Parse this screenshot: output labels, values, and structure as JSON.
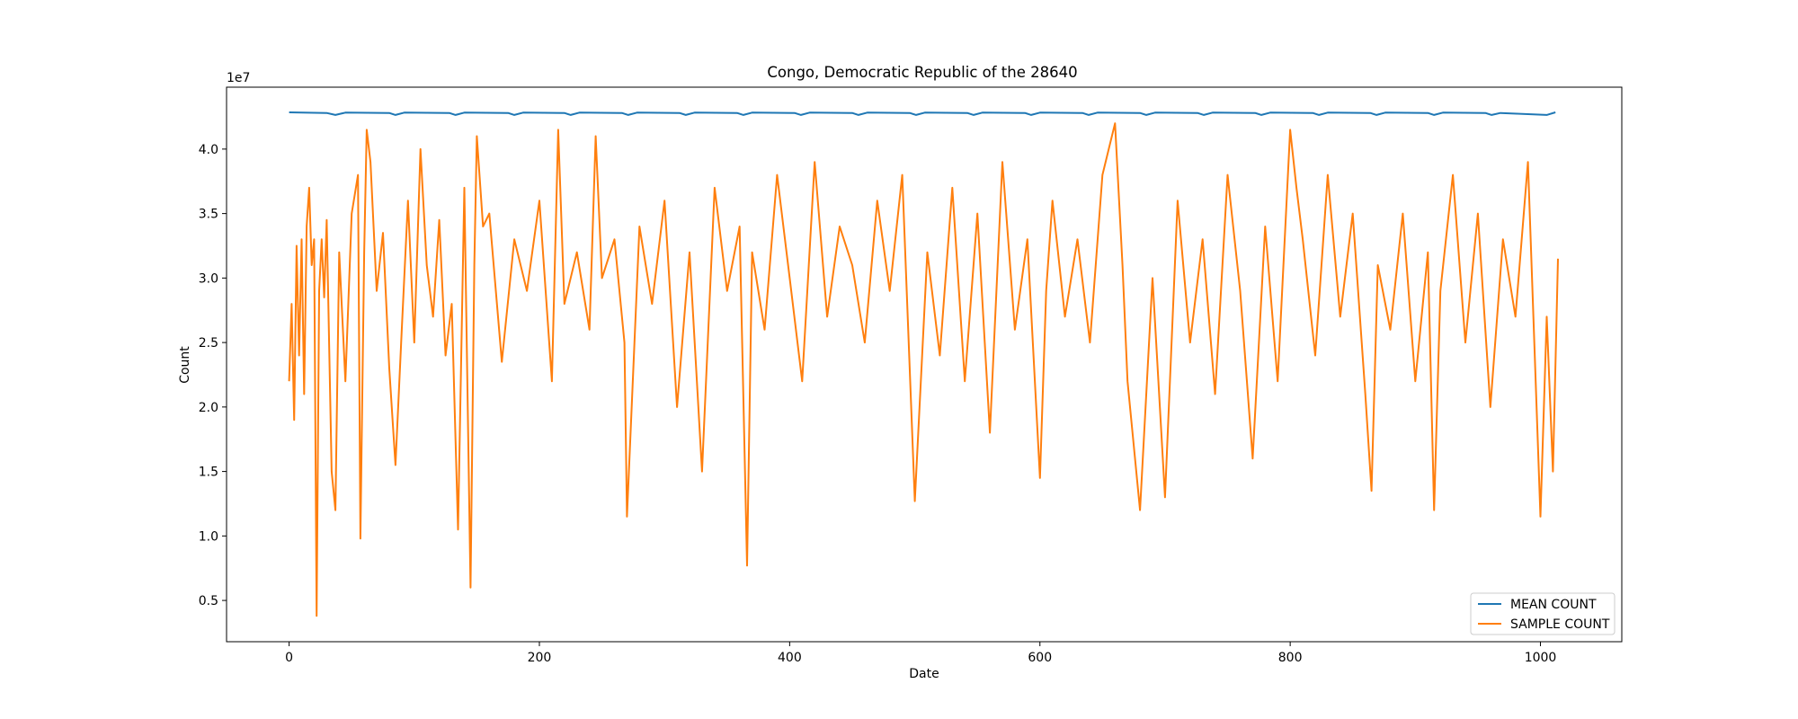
{
  "chart_data": {
    "type": "line",
    "title": "Congo, Democratic Republic of the 28640",
    "xlabel": "Date",
    "ylabel": "Count",
    "y_offset_label": "1e7",
    "y_scale": 10000000,
    "xlim": [
      -50,
      1065
    ],
    "ylim": [
      0.18,
      4.48
    ],
    "x_ticks": [
      0,
      200,
      400,
      600,
      800,
      1000
    ],
    "x_tick_labels": [
      "0",
      "200",
      "400",
      "600",
      "800",
      "1000"
    ],
    "y_ticks": [
      0.5,
      1.0,
      1.5,
      2.0,
      2.5,
      3.0,
      3.5,
      4.0
    ],
    "y_tick_labels": [
      "0.5",
      "1.0",
      "1.5",
      "2.0",
      "2.5",
      "3.0",
      "3.5",
      "4.0"
    ],
    "grid": false,
    "legend_position": "lower-right",
    "n_points": 1014,
    "series": [
      {
        "name": "MEAN COUNT",
        "color": "#1f77b4",
        "description": "nearly constant around 4.28e7 with periodic small dips (~every 45-50 days)",
        "x": [
          0,
          30,
          37,
          45,
          80,
          85,
          92,
          128,
          133,
          140,
          175,
          180,
          187,
          220,
          225,
          232,
          266,
          271,
          278,
          312,
          317,
          324,
          358,
          363,
          370,
          404,
          409,
          416,
          450,
          455,
          462,
          496,
          501,
          508,
          542,
          547,
          554,
          588,
          593,
          600,
          634,
          639,
          646,
          680,
          685,
          692,
          726,
          731,
          738,
          772,
          777,
          784,
          818,
          823,
          830,
          864,
          869,
          876,
          910,
          915,
          922,
          956,
          961,
          968,
          1005,
          1012
        ],
        "values": [
          4.285,
          4.28,
          4.265,
          4.283,
          4.28,
          4.265,
          4.283,
          4.28,
          4.265,
          4.283,
          4.28,
          4.265,
          4.283,
          4.28,
          4.265,
          4.283,
          4.28,
          4.265,
          4.283,
          4.28,
          4.265,
          4.283,
          4.28,
          4.265,
          4.283,
          4.28,
          4.265,
          4.283,
          4.28,
          4.265,
          4.283,
          4.28,
          4.265,
          4.283,
          4.28,
          4.265,
          4.283,
          4.28,
          4.265,
          4.283,
          4.28,
          4.265,
          4.283,
          4.28,
          4.265,
          4.283,
          4.28,
          4.265,
          4.283,
          4.28,
          4.265,
          4.283,
          4.28,
          4.265,
          4.283,
          4.28,
          4.265,
          4.283,
          4.28,
          4.265,
          4.283,
          4.28,
          4.265,
          4.28,
          4.265,
          4.285
        ]
      },
      {
        "name": "SAMPLE COUNT",
        "color": "#ff7f0e",
        "description": "noisy daily counts mostly between 2.0e7 and 4.0e7; key extremes listed below, remaining points approximate",
        "x": [
          0,
          2,
          4,
          6,
          8,
          10,
          12,
          14,
          16,
          18,
          20,
          22,
          24,
          26,
          28,
          30,
          34,
          37,
          40,
          45,
          50,
          55,
          57,
          60,
          62,
          65,
          70,
          75,
          80,
          85,
          90,
          95,
          100,
          105,
          110,
          115,
          120,
          125,
          130,
          135,
          140,
          145,
          148,
          150,
          155,
          160,
          170,
          180,
          190,
          200,
          210,
          215,
          220,
          230,
          240,
          245,
          250,
          260,
          268,
          270,
          280,
          290,
          300,
          310,
          320,
          330,
          340,
          350,
          360,
          366,
          370,
          380,
          390,
          400,
          410,
          420,
          430,
          440,
          450,
          460,
          470,
          480,
          490,
          500,
          510,
          520,
          530,
          540,
          550,
          560,
          570,
          580,
          590,
          600,
          605,
          610,
          620,
          630,
          640,
          650,
          660,
          666,
          670,
          680,
          690,
          700,
          710,
          720,
          730,
          740,
          750,
          760,
          770,
          780,
          790,
          800,
          805,
          810,
          820,
          830,
          840,
          850,
          860,
          865,
          870,
          880,
          890,
          900,
          910,
          915,
          920,
          930,
          940,
          950,
          960,
          970,
          980,
          990,
          1000,
          1005,
          1010,
          1014
        ],
        "values": [
          2.2,
          2.8,
          1.9,
          3.25,
          2.4,
          3.3,
          2.1,
          3.4,
          3.7,
          3.1,
          3.3,
          0.38,
          2.9,
          3.3,
          2.85,
          3.45,
          1.5,
          1.2,
          3.2,
          2.2,
          3.5,
          3.8,
          0.98,
          3.2,
          4.15,
          3.9,
          2.9,
          3.35,
          2.3,
          1.55,
          2.6,
          3.6,
          2.5,
          4.0,
          3.1,
          2.7,
          3.45,
          2.4,
          2.8,
          1.05,
          3.7,
          0.6,
          3.1,
          4.1,
          3.4,
          3.5,
          2.35,
          3.3,
          2.9,
          3.6,
          2.2,
          4.15,
          2.8,
          3.2,
          2.6,
          4.1,
          3.0,
          3.3,
          2.5,
          1.15,
          3.4,
          2.8,
          3.6,
          2.0,
          3.2,
          1.5,
          3.7,
          2.9,
          3.4,
          0.77,
          3.2,
          2.6,
          3.8,
          3.0,
          2.2,
          3.9,
          2.7,
          3.4,
          3.1,
          2.5,
          3.6,
          2.9,
          3.8,
          1.27,
          3.2,
          2.4,
          3.7,
          2.2,
          3.5,
          1.8,
          3.9,
          2.6,
          3.3,
          1.45,
          2.9,
          3.6,
          2.7,
          3.3,
          2.5,
          3.8,
          4.2,
          3.1,
          2.2,
          1.2,
          3.0,
          1.3,
          3.6,
          2.5,
          3.3,
          2.1,
          3.8,
          2.9,
          1.6,
          3.4,
          2.2,
          4.15,
          3.7,
          3.3,
          2.4,
          3.8,
          2.7,
          3.5,
          2.1,
          1.35,
          3.1,
          2.6,
          3.5,
          2.2,
          3.2,
          1.2,
          2.9,
          3.8,
          2.5,
          3.5,
          2.0,
          3.3,
          2.7,
          3.9,
          1.15,
          2.7,
          1.5,
          3.15
        ]
      }
    ]
  }
}
